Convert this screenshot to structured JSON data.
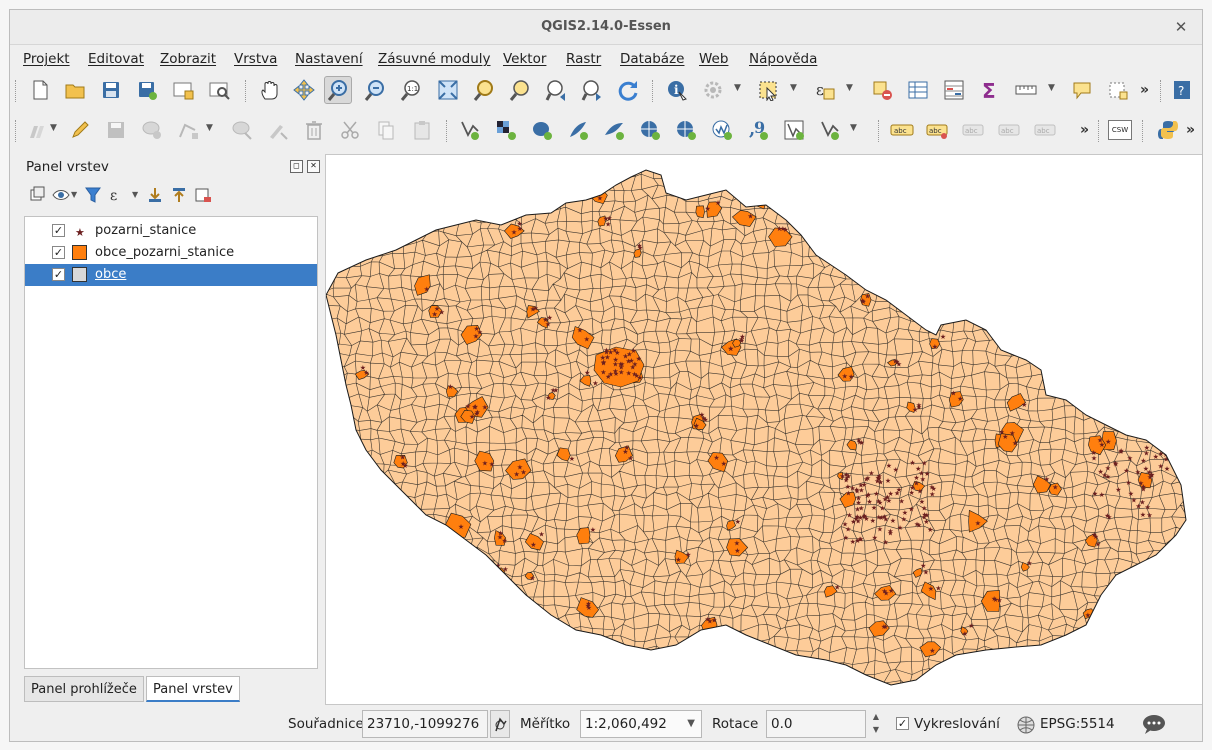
{
  "window": {
    "title": "QGIS2.14.0-Essen",
    "close_icon": "close-icon"
  },
  "menu": [
    "Projekt",
    "Editovat",
    "Zobrazit",
    "Vrstva",
    "Nastavení",
    "Zásuvné moduly",
    "Vektor",
    "Rastr",
    "Databáze",
    "Web",
    "Nápověda"
  ],
  "toolbar1": {
    "icons": [
      "new-project-icon",
      "open-project-icon",
      "save-project-icon",
      "save-as-icon",
      "new-print-composer-icon",
      "composer-manager-icon",
      "pan-icon",
      "pan-to-selection-icon",
      "zoom-in-icon",
      "zoom-out-icon",
      "zoom-actual-size-icon",
      "zoom-full-icon",
      "zoom-to-selection-icon",
      "zoom-to-layer-icon",
      "zoom-last-icon",
      "zoom-next-icon",
      "refresh-icon",
      "identify-icon",
      "run-action-icon",
      "select-features-icon",
      "select-by-expression-icon",
      "deselect-all-icon",
      "open-attribute-table-icon",
      "field-calculator-icon",
      "statistical-summary-icon",
      "measure-icon",
      "map-tips-icon",
      "text-annotation-icon",
      "help-icon"
    ],
    "more": "»"
  },
  "toolbar2": {
    "icons": [
      "current-edits-icon",
      "toggle-editing-icon",
      "save-layer-edits-icon",
      "add-feature-icon",
      "node-tool-icon",
      "move-feature-icon",
      "modify-attributes-icon",
      "delete-selected-icon",
      "cut-features-icon",
      "copy-features-icon",
      "paste-features-icon",
      "add-vector-layer-icon",
      "add-raster-layer-icon",
      "add-postgis-layer-icon",
      "add-spatialite-layer-icon",
      "add-mssql-layer-icon",
      "add-wms-layer-icon",
      "add-wcs-layer-icon",
      "add-wfs-layer-icon",
      "add-delimited-text-icon",
      "new-shapefile-icon",
      "new-spatialite-icon",
      "label-toolbar-icon",
      "pin-labels-icon",
      "show-hide-labels-icon",
      "move-label-icon",
      "rotate-label-icon",
      "csw-icon",
      "python-icon"
    ],
    "csw_label": "CSW",
    "more": "»"
  },
  "layers_panel": {
    "title": "Panel vrstev",
    "layers": [
      {
        "name": "pozarni_stanice",
        "checked": true,
        "symbol": "star",
        "color": "#6b1f1f"
      },
      {
        "name": "obce_pozarni_stanice",
        "checked": true,
        "symbol": "fill",
        "color": "#ff7f0e"
      },
      {
        "name": "obce",
        "checked": true,
        "symbol": "fill",
        "color": "#d9d9d9",
        "selected": true
      }
    ],
    "tabs": [
      "Panel prohlížeče",
      "Panel vrstev"
    ],
    "active_tab": "Panel vrstev"
  },
  "map": {
    "fill_color": "#fdcc99",
    "stroke_color": "#1a1a1a",
    "highlight_color": "#ff7f0e",
    "station_color": "#6b1f1f"
  },
  "status": {
    "coord_label": "Souřadnice",
    "coord_value": "23710,-1099276",
    "scale_label": "Měřítko",
    "scale_value": "1:2,060,492",
    "rotation_label": "Rotace",
    "rotation_value": "0.0",
    "render_label": "Vykreslování",
    "render_checked": true,
    "crs": "EPSG:5514"
  }
}
